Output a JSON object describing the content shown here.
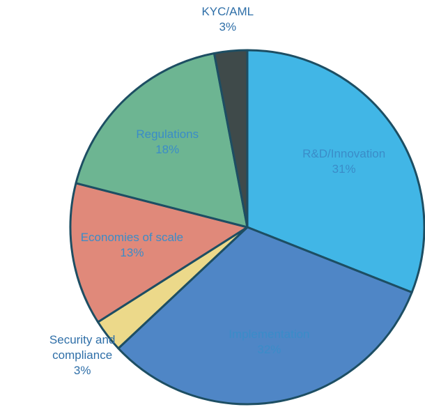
{
  "chart_data": {
    "type": "pie",
    "categories": [
      "R&D/Innovation",
      "Implementation",
      "Security and compliance",
      "Economies of scale",
      "Regulations",
      "KYC/AML"
    ],
    "values": [
      31,
      32,
      3,
      13,
      18,
      3
    ],
    "value_labels": [
      "31%",
      "32%",
      "3%",
      "13%",
      "18%",
      "3%"
    ],
    "colors": [
      "#41b6e6",
      "#4f86c6",
      "#ecd98a",
      "#e0897a",
      "#6db592",
      "#3f4a4a"
    ]
  }
}
